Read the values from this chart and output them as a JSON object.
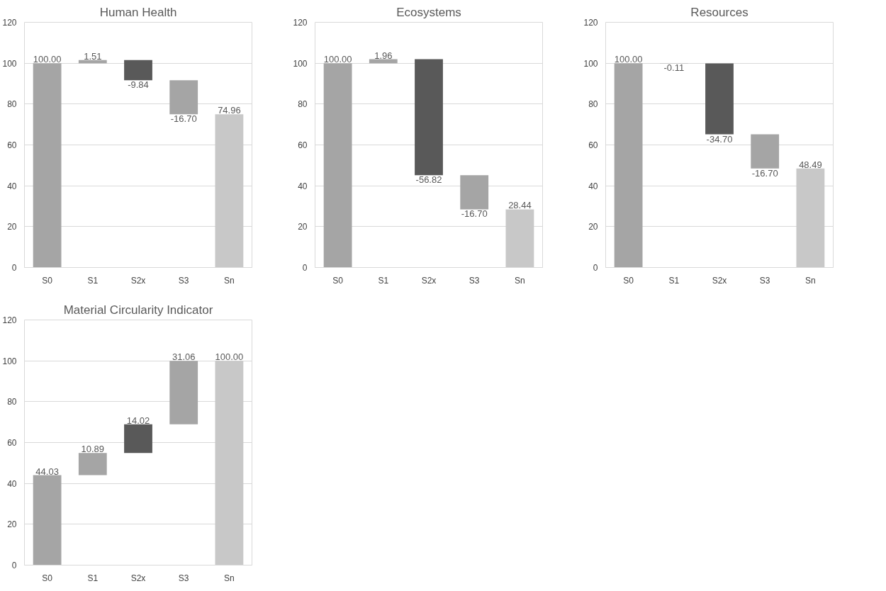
{
  "chart_data": [
    {
      "type": "bar",
      "title": "Human Health",
      "categories": [
        "S0",
        "S1",
        "S2x",
        "S3",
        "Sn"
      ],
      "values": [
        100.0,
        1.51,
        -9.84,
        -16.7,
        74.96
      ],
      "base": [
        0,
        100.0,
        101.51,
        91.67,
        0
      ],
      "colors": [
        "#a5a5a5",
        "#a5a5a5",
        "#595959",
        "#a5a5a5",
        "#c8c8c8"
      ],
      "value_labels": [
        "100.00",
        "1.51",
        "-9.84",
        "-16.70",
        "74.96"
      ],
      "ylim": [
        0,
        120
      ],
      "yticks": [
        0,
        20,
        40,
        60,
        80,
        100,
        120
      ],
      "grid": "y"
    },
    {
      "type": "bar",
      "title": "Ecosystems",
      "categories": [
        "S0",
        "S1",
        "S2x",
        "S3",
        "Sn"
      ],
      "values": [
        100.0,
        1.96,
        -56.82,
        -16.7,
        28.44
      ],
      "base": [
        0,
        100.0,
        101.96,
        45.14,
        0
      ],
      "colors": [
        "#a5a5a5",
        "#a5a5a5",
        "#595959",
        "#a5a5a5",
        "#c8c8c8"
      ],
      "value_labels": [
        "100.00",
        "1.96",
        "-56.82",
        "-16.70",
        "28.44"
      ],
      "ylim": [
        0,
        120
      ],
      "yticks": [
        0,
        20,
        40,
        60,
        80,
        100,
        120
      ],
      "grid": "y"
    },
    {
      "type": "bar",
      "title": "Resources",
      "categories": [
        "S0",
        "S1",
        "S2x",
        "S3",
        "Sn"
      ],
      "values": [
        100.0,
        -0.11,
        -34.7,
        -16.7,
        48.49
      ],
      "base": [
        0,
        100.0,
        99.89,
        65.19,
        0
      ],
      "colors": [
        "#a5a5a5",
        "#a5a5a5",
        "#595959",
        "#a5a5a5",
        "#c8c8c8"
      ],
      "value_labels": [
        "100.00",
        "-0.11",
        "-34.70",
        "-16.70",
        "48.49"
      ],
      "ylim": [
        0,
        120
      ],
      "yticks": [
        0,
        20,
        40,
        60,
        80,
        100,
        120
      ],
      "grid": "y"
    },
    {
      "type": "bar",
      "title": "Material Circularity Indicator",
      "categories": [
        "S0",
        "S1",
        "S2x",
        "S3",
        "Sn"
      ],
      "values": [
        44.03,
        10.89,
        14.02,
        31.06,
        100.0
      ],
      "base": [
        0,
        44.03,
        54.92,
        68.94,
        0
      ],
      "colors": [
        "#a5a5a5",
        "#a5a5a5",
        "#595959",
        "#a5a5a5",
        "#c8c8c8"
      ],
      "value_labels": [
        "44.03",
        "10.89",
        "14.02",
        "31.06",
        "100.00"
      ],
      "ylim": [
        0,
        120
      ],
      "yticks": [
        0,
        20,
        40,
        60,
        80,
        100,
        120
      ],
      "grid": "y"
    }
  ]
}
